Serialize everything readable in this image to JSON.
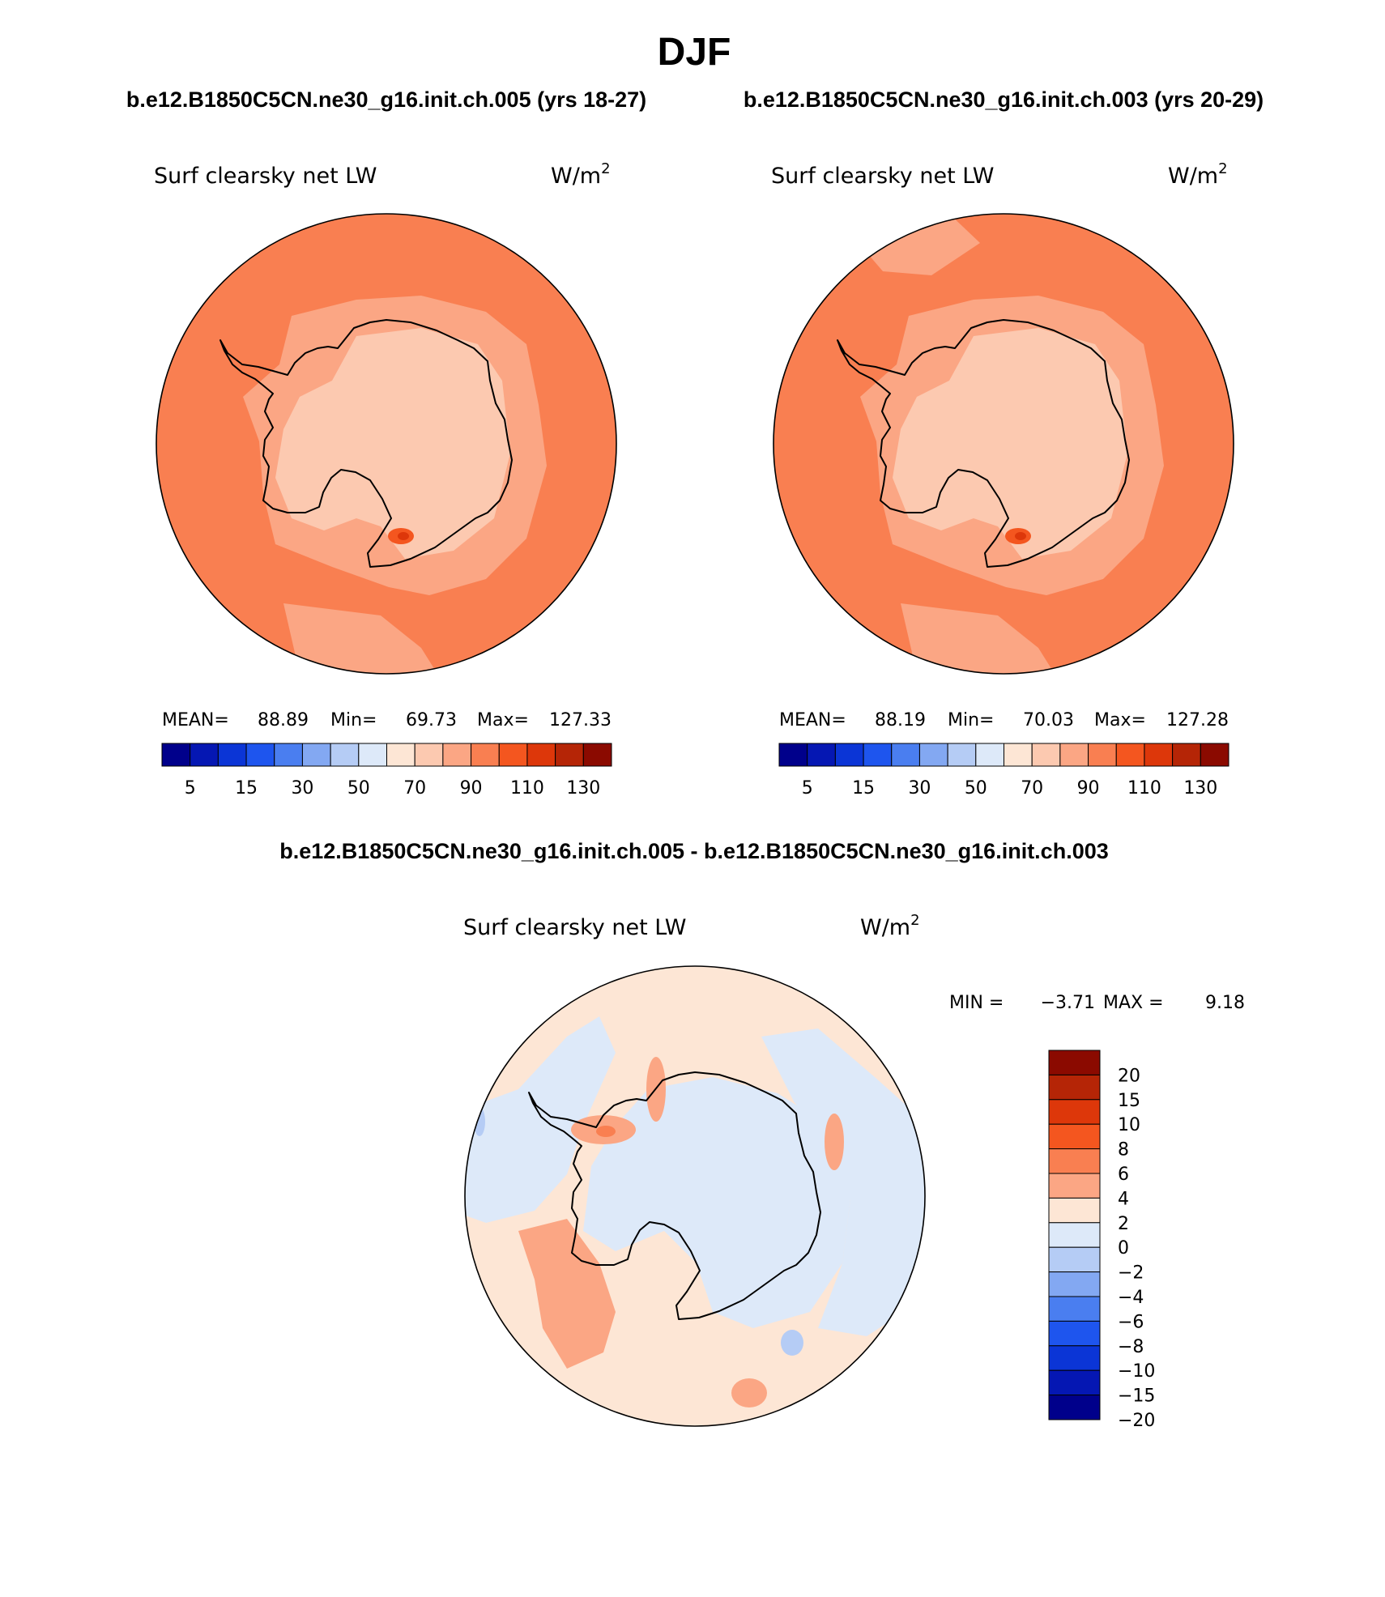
{
  "figure": {
    "title": "DJF",
    "case_a_header": "b.e12.B1850C5CN.ne30_g16.init.ch.005 (yrs 18-27)",
    "case_b_header": "b.e12.B1850C5CN.ne30_g16.init.ch.003 (yrs 20-29)",
    "diff_header": "b.e12.B1850C5CN.ne30_g16.init.ch.005 - b.e12.B1850C5CN.ne30_g16.init.ch.003"
  },
  "panels": {
    "case_a": {
      "variable": "Surf clearsky net LW",
      "units_base": "W/m",
      "units_exp": "2",
      "mean_label": "MEAN=",
      "mean": "88.89",
      "min_label": "Min=",
      "min": "69.73",
      "max_label": "Max=",
      "max": "127.33"
    },
    "case_b": {
      "variable": "Surf clearsky net LW",
      "units_base": "W/m",
      "units_exp": "2",
      "mean_label": "MEAN=",
      "mean": "88.19",
      "min_label": "Min=",
      "min": "70.03",
      "max_label": "Max=",
      "max": "127.28"
    },
    "diff": {
      "variable": "Surf clearsky net LW",
      "units_base": "W/m",
      "units_exp": "2",
      "min_label": "MIN =",
      "min": "−3.71",
      "max_label": "MAX =",
      "max": "9.18"
    }
  },
  "colorbars": {
    "case": {
      "colors": [
        "#00008b",
        "#0517b3",
        "#0b35d6",
        "#1e55ee",
        "#4a7ef0",
        "#83a8f2",
        "#b5ccf5",
        "#dde9f9",
        "#fde6d5",
        "#fcc9b0",
        "#fba684",
        "#f97f51",
        "#f4561f",
        "#dd370a",
        "#b52506",
        "#8b0a00"
      ],
      "labels": [
        "5",
        "15",
        "30",
        "50",
        "70",
        "90",
        "110",
        "130"
      ]
    },
    "diff": {
      "colors_top_to_bottom": [
        "#8b0a00",
        "#b52506",
        "#dd370a",
        "#f4561f",
        "#f97f51",
        "#fba684",
        "#fde6d5",
        "#dde9f9",
        "#b5ccf5",
        "#83a8f2",
        "#4a7ef0",
        "#1e55ee",
        "#0b35d6",
        "#0517b3",
        "#00008b"
      ],
      "labels_top_to_bottom": [
        "20",
        "15",
        "10",
        "8",
        "6",
        "4",
        "2",
        "0",
        "−2",
        "−4",
        "−6",
        "−8",
        "−10",
        "−15",
        "−20"
      ]
    }
  },
  "map_fill": {
    "ocean": "#f97f51",
    "near_coast": "#fba684",
    "interior": "#fcc9b0",
    "diff_background": "#fde6d5",
    "diff_negative": "#dde9f9",
    "diff_positive": "#fba684"
  }
}
